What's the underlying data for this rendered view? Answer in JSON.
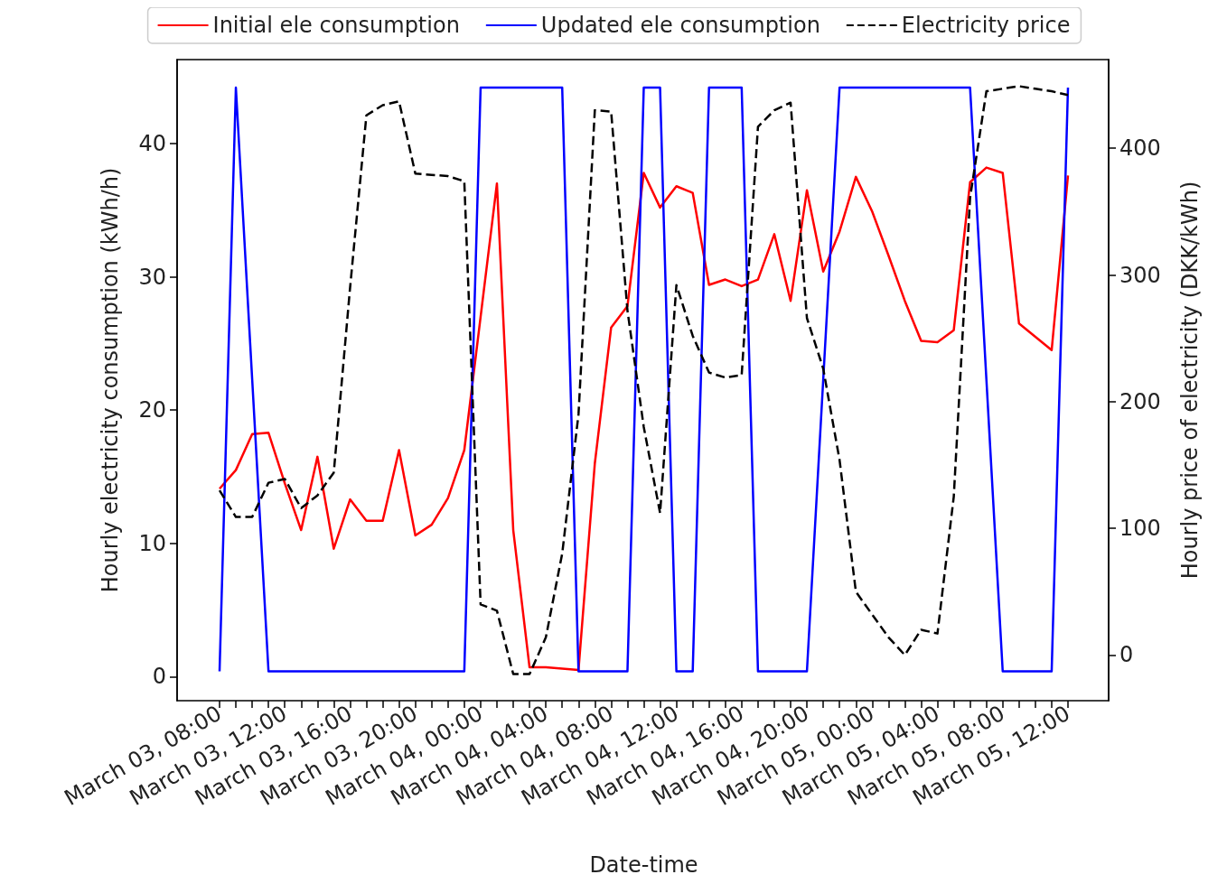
{
  "chart_data": {
    "type": "line",
    "xlabel": "Date-time",
    "ylabel": "Hourly electricity consumption (kWh/h)",
    "y2label": "Hourly price of electricity (DKK/kWh)",
    "categories": [
      "March 03, 08:00",
      null,
      null,
      null,
      "March 03, 12:00",
      null,
      null,
      null,
      "March 03, 16:00",
      null,
      null,
      null,
      "March 03, 20:00",
      null,
      null,
      null,
      "March 04, 00:00",
      null,
      null,
      null,
      "March 04, 04:00",
      null,
      null,
      null,
      "March 04, 08:00",
      null,
      null,
      null,
      "March 04, 12:00",
      null,
      null,
      null,
      "March 04, 16:00",
      null,
      null,
      null,
      "March 04, 20:00",
      null,
      null,
      null,
      "March 05, 00:00",
      null,
      null,
      null,
      "March 05, 04:00",
      null,
      null,
      null,
      "March 05, 08:00",
      null,
      null,
      null,
      "March 05, 12:00"
    ],
    "series": [
      {
        "name": "Initial ele consumption",
        "color": "#ff0000",
        "values": [
          14.1,
          15.5,
          18.2,
          18.3,
          14.5,
          11,
          16.5,
          9.6,
          13.3,
          11.7,
          11.7,
          17,
          10.6,
          11.4,
          13.4,
          17,
          27,
          37,
          11,
          0.7,
          0.7,
          0.6,
          0.5,
          16,
          26.2,
          27.8,
          37.8,
          35.2,
          36.8,
          36.3,
          29.4,
          29.8,
          29.3,
          29.8,
          33.2,
          28.2,
          36.5,
          30.4,
          33.4,
          37.5,
          34.9,
          31.6,
          28.2,
          25.2,
          25.1,
          26,
          37.1,
          38.2,
          37.8,
          26.5,
          25.5,
          24.5,
          37.6
        ]
      },
      {
        "name": "Updated ele consumption",
        "color": "#0000ff",
        "values": [
          0.4,
          44.2,
          22.3,
          0.4,
          0.4,
          0.4,
          0.4,
          0.4,
          0.4,
          0.4,
          0.4,
          0.4,
          0.4,
          0.4,
          0.4,
          0.4,
          44.2,
          44.2,
          44.2,
          44.2,
          44.2,
          44.2,
          0.4,
          0.4,
          0.4,
          0.4,
          44.2,
          44.2,
          0.4,
          0.4,
          44.2,
          44.2,
          44.2,
          0.4,
          0.4,
          0.4,
          0.4,
          22.3,
          44.2,
          44.2,
          44.2,
          44.2,
          44.2,
          44.2,
          44.2,
          44.2,
          44.2,
          22.3,
          0.4,
          0.4,
          0.4,
          0.4,
          44.2
        ]
      },
      {
        "name": "Electricity price",
        "color": "#000000",
        "axis": "y2",
        "line_style": "dashed",
        "values": [
          130,
          109,
          109,
          136,
          139,
          116,
          126,
          144,
          290,
          426,
          434,
          437,
          380,
          379,
          378,
          374,
          40,
          35,
          -15,
          -15,
          14,
          80,
          190,
          430,
          429,
          272,
          180,
          112,
          292,
          252,
          223,
          219,
          221,
          417,
          430,
          436,
          266,
          226,
          154,
          50,
          32,
          14,
          0,
          20,
          17,
          125,
          361,
          445,
          447,
          449,
          447,
          445,
          442
        ]
      }
    ],
    "ylim": [
      -1.8,
      46.3
    ],
    "yticks": [
      0,
      10,
      20,
      30,
      40
    ],
    "y2lim": [
      -36,
      470
    ],
    "y2ticks": [
      0,
      100,
      200,
      300,
      400
    ],
    "grid": false,
    "legend": "top",
    "marker": "none"
  }
}
